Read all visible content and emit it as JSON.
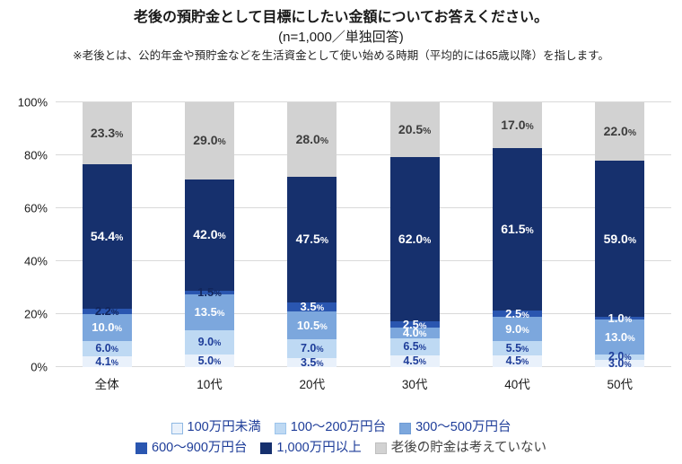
{
  "header": {
    "title": "老後の預貯金として目標にしたい金額についてお答えください。",
    "subtitle": "(n=1,000／単独回答)",
    "note": "※老後とは、公的年金や預貯金などを生活資金として使い始める時期（平均的には65歳以降）を指します。"
  },
  "colors": {
    "navy_text": "#1e3d99",
    "gray_label_text": "#3d3d3d",
    "gridline": "#d9d9d9",
    "axis_text": "#1a1a1a"
  },
  "chart_data": {
    "type": "bar",
    "stacked": true,
    "title": "老後の預貯金として目標にしたい金額についてお答えください。",
    "categories": [
      "全体",
      "10代",
      "20代",
      "30代",
      "40代",
      "50代"
    ],
    "series": [
      {
        "name": "100万円未満",
        "color": "#e9f1fb",
        "swatch_border": "#8fb8e3",
        "label_color": "#1e3d99",
        "legend_text_color": "#1e3d99",
        "label_size": 12.5,
        "values": [
          4.1,
          5.0,
          3.5,
          4.5,
          4.5,
          3.0
        ]
      },
      {
        "name": "100～200万円台",
        "color": "#bed9f3",
        "swatch_border": "#9cc4ec",
        "label_color": "#1e3d99",
        "legend_text_color": "#1e3d99",
        "label_size": 12.5,
        "values": [
          6.0,
          9.0,
          7.0,
          6.5,
          5.5,
          2.0
        ]
      },
      {
        "name": "300～500万円台",
        "color": "#7ca7dd",
        "swatch_border": "#6f9cd6",
        "label_color": "#ffffff",
        "legend_text_color": "#1e3d99",
        "label_size": 13,
        "values": [
          10.0,
          13.5,
          10.5,
          4.0,
          9.0,
          13.0
        ]
      },
      {
        "name": "600～900万円台",
        "color": "#2a56b0",
        "swatch_border": "#2a56b0",
        "label_color": "#ffffff",
        "legend_text_color": "#1e3d99",
        "label_size": 13,
        "label_color_overrides": {
          "0": "#12265c",
          "1": "#12265c"
        },
        "values": [
          2.2,
          1.5,
          3.5,
          2.5,
          2.5,
          1.0
        ]
      },
      {
        "name": "1,000万円以上",
        "color": "#16306d",
        "swatch_border": "#16306d",
        "label_color": "#ffffff",
        "legend_text_color": "#1e3d99",
        "label_size": 14,
        "values": [
          54.4,
          42.0,
          47.5,
          62.0,
          61.5,
          59.0
        ]
      },
      {
        "name": "老後の貯金は考えていない",
        "color": "#d2d2d2",
        "swatch_border": "#bfbfbf",
        "label_color": "#3d3d3d",
        "legend_text_color": "#404040",
        "label_size": 14,
        "values": [
          23.3,
          29.0,
          28.0,
          20.5,
          17.0,
          22.0
        ]
      }
    ],
    "ylabel": "",
    "xlabel": "",
    "ylim": [
      0,
      100
    ],
    "yticks": [
      "0%",
      "20%",
      "40%",
      "60%",
      "80%",
      "100%"
    ],
    "grid": true,
    "legend_position": "bottom",
    "legend_rows": [
      [
        0,
        1,
        2
      ],
      [
        3,
        4,
        5
      ]
    ]
  }
}
